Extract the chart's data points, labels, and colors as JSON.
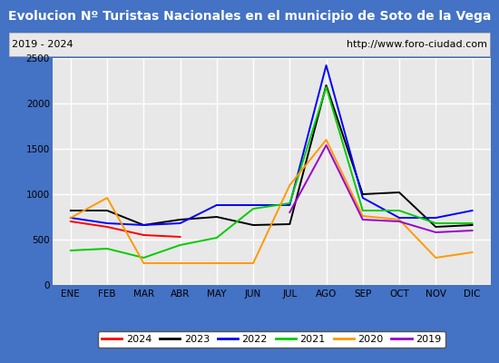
{
  "title": "Evolucion Nº Turistas Nacionales en el municipio de Soto de la Vega",
  "subtitle_left": "2019 - 2024",
  "subtitle_right": "http://www.foro-ciudad.com",
  "months": [
    "ENE",
    "FEB",
    "MAR",
    "ABR",
    "MAY",
    "JUN",
    "JUL",
    "AGO",
    "SEP",
    "OCT",
    "NOV",
    "DIC"
  ],
  "ylim": [
    0,
    2500
  ],
  "yticks": [
    0,
    500,
    1000,
    1500,
    2000,
    2500
  ],
  "series": {
    "2024": {
      "color": "#ff0000",
      "values": [
        700,
        640,
        550,
        530,
        null,
        null,
        null,
        null,
        null,
        null,
        null,
        null
      ]
    },
    "2023": {
      "color": "#000000",
      "values": [
        820,
        820,
        660,
        720,
        750,
        660,
        670,
        2200,
        1000,
        1020,
        640,
        660
      ]
    },
    "2022": {
      "color": "#0000ff",
      "values": [
        740,
        680,
        660,
        680,
        880,
        880,
        880,
        2420,
        960,
        740,
        740,
        820
      ]
    },
    "2021": {
      "color": "#00cc00",
      "values": [
        380,
        400,
        300,
        440,
        520,
        840,
        900,
        2180,
        820,
        820,
        680,
        680
      ]
    },
    "2020": {
      "color": "#ff9900",
      "values": [
        740,
        960,
        240,
        240,
        240,
        240,
        1100,
        1600,
        760,
        720,
        300,
        360
      ]
    },
    "2019": {
      "color": "#9900cc",
      "values": [
        null,
        null,
        null,
        null,
        null,
        null,
        800,
        1540,
        720,
        700,
        580,
        600
      ]
    }
  },
  "title_bg_color": "#4472c4",
  "title_color": "#ffffff",
  "title_fontsize": 10,
  "plot_bg_color": "#e8e8e8",
  "grid_color": "#ffffff",
  "border_color": "#4472c4",
  "subtitle_box_facecolor": "#e8e8e8",
  "subtitle_text_color": "#000000",
  "subtitle_fontsize": 8,
  "tick_fontsize": 7.5,
  "legend_fontsize": 8
}
